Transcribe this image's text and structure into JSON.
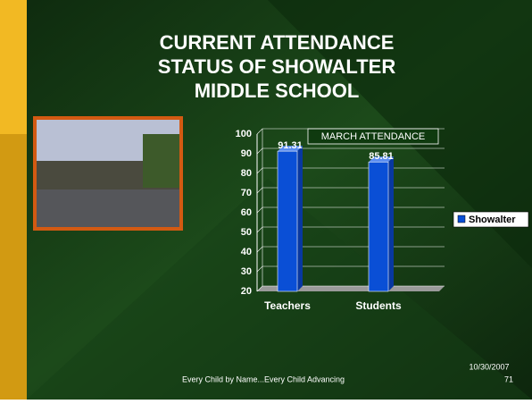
{
  "slide": {
    "title_lines": [
      "CURRENT ATTENDANCE",
      "STATUS OF SHOWALTER",
      "MIDDLE SCHOOL"
    ],
    "footer": "Every Child by Name...Every Child Advancing",
    "date": "10/30/2007",
    "page_number": "71"
  },
  "chart_data": {
    "type": "bar",
    "title": "MARCH ATTENDANCE",
    "categories": [
      "Teachers",
      "Students"
    ],
    "series": [
      {
        "name": "Showalter",
        "color": "#0a4fd6",
        "values": [
          91.31,
          85.81
        ]
      }
    ],
    "ylim": [
      20,
      100
    ],
    "yticks": [
      20,
      30,
      40,
      50,
      60,
      70,
      80,
      90,
      100
    ],
    "grid": true,
    "legend": "right"
  }
}
